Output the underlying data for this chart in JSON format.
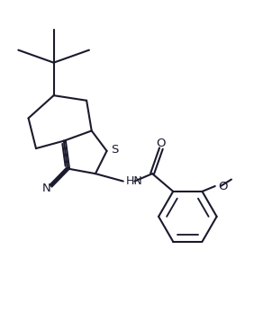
{
  "bg_color": "#ffffff",
  "line_color": "#1a1a2e",
  "line_width": 1.5,
  "figsize": [
    2.82,
    3.47
  ],
  "dpi": 100,
  "xlim": [
    0,
    10
  ],
  "ylim": [
    0,
    12
  ]
}
